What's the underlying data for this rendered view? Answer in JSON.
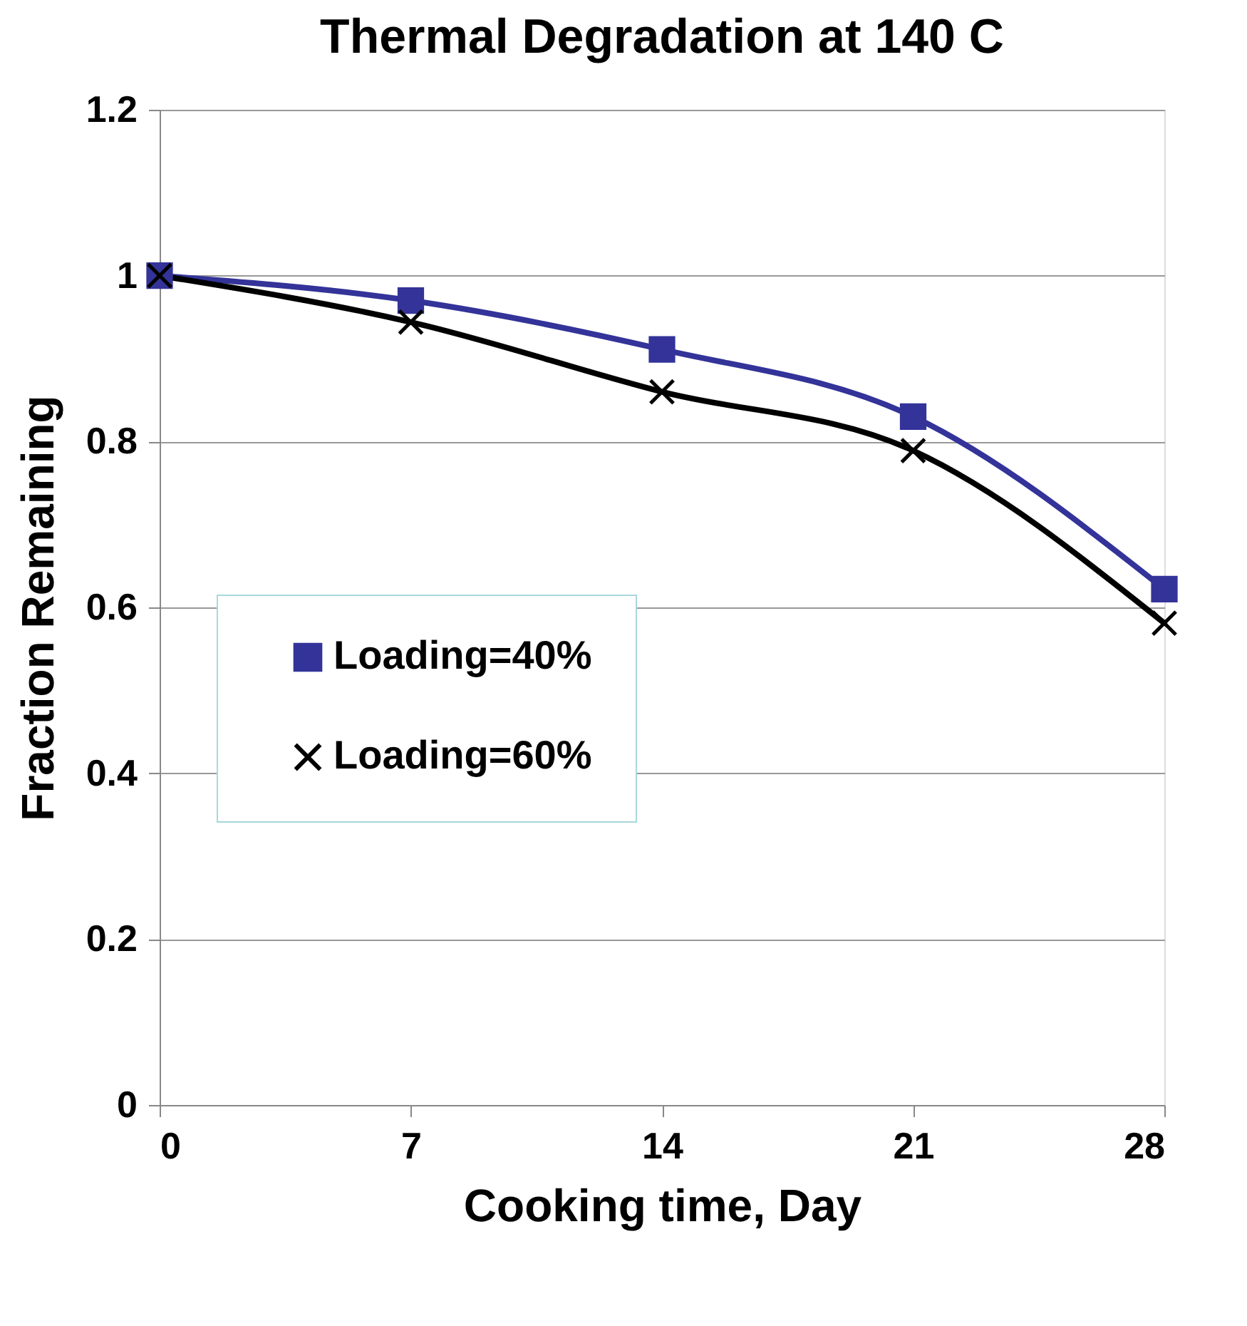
{
  "chart_data": {
    "type": "line",
    "title": "Thermal Degradation at 140 C",
    "xlabel": "Cooking time,  Day",
    "ylabel": "Fraction Remaining",
    "x": [
      0,
      7,
      14,
      21,
      28
    ],
    "series": [
      {
        "name": "Loading=40%",
        "color": "#333399",
        "marker": "square",
        "values": [
          1.0,
          0.97,
          0.911,
          0.83,
          0.622
        ]
      },
      {
        "name": "Loading=60%",
        "color": "#000000",
        "marker": "cross",
        "values": [
          1.0,
          0.944,
          0.86,
          0.789,
          0.581
        ]
      }
    ],
    "xlim": [
      0,
      28
    ],
    "xticks": [
      0,
      7,
      14,
      21,
      28
    ],
    "ylim": [
      0,
      1.2
    ],
    "yticks": [
      0,
      0.2,
      0.4,
      0.6,
      0.8,
      1,
      1.2
    ],
    "grid": "y",
    "legend": "left"
  }
}
